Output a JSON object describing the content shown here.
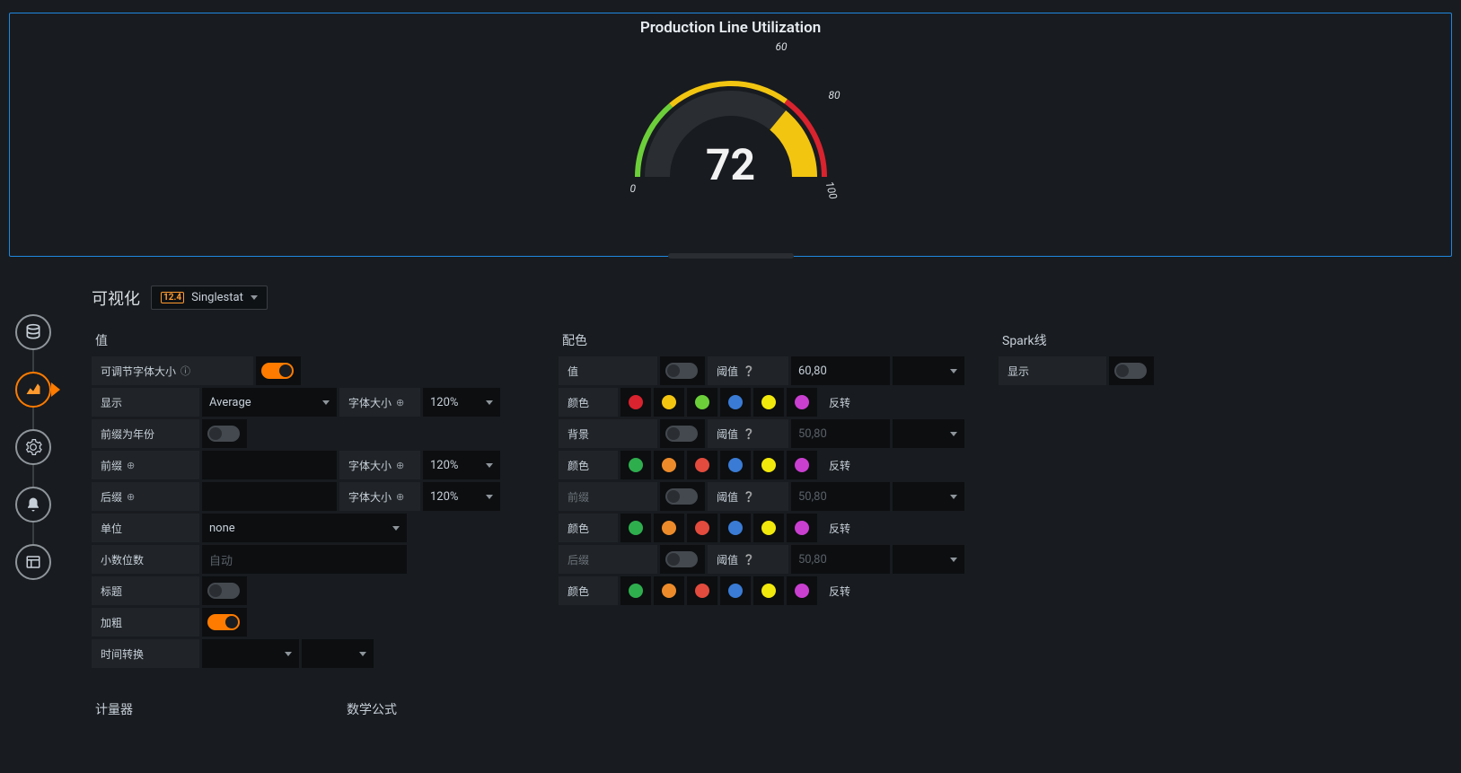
{
  "gauge": {
    "title": "Production Line Utilization",
    "value": 72,
    "ticks": {
      "min": "0",
      "t1": "60",
      "t2": "80",
      "t3": "100"
    },
    "zones": [
      {
        "from": 180,
        "to": 126,
        "color": "#d9232e"
      },
      {
        "from": 126,
        "to": 50,
        "color": "#f2c511"
      },
      {
        "from": 50,
        "to": 0,
        "color": "#6ccf3a"
      }
    ],
    "value_arc_color": "#f2c511",
    "track_color": "#2a2e33",
    "value_angle_deg": 50.4
  },
  "viz_header": {
    "label": "可视化",
    "num": "12.4",
    "name": "Singlestat"
  },
  "nav": [
    "database",
    "chart",
    "settings",
    "bell",
    "panel"
  ],
  "value_section": {
    "title": "值",
    "adjustable_font": "可调节字体大小",
    "show": "显示",
    "show_value": "Average",
    "font_size": "字体大小",
    "font_size_value": "120%",
    "prefix_year": "前缀为年份",
    "prefix": "前缀",
    "suffix": "后缀",
    "unit": "单位",
    "unit_value": "none",
    "decimals": "小数位数",
    "decimals_placeholder": "自动",
    "title_label": "标题",
    "bold": "加粗",
    "time_convert": "时间转换",
    "gauge_section": "计量器",
    "formula_section": "数学公式"
  },
  "color_section": {
    "title": "配色",
    "value": "值",
    "threshold": "阈值",
    "threshold_val_active": "60,80",
    "threshold_val_disabled": "50,80",
    "colors_label": "颜色",
    "reverse": "反转",
    "background": "背景",
    "prefix_label": "前缀",
    "suffix_label": "后缀",
    "palette_value": [
      "#d9232e",
      "#f2c511",
      "#6ccf3a",
      "#3a7bd5",
      "#f2e90c",
      "#c93fcf"
    ],
    "palette_std": [
      "#2fae4e",
      "#ed8b2b",
      "#e24b3d",
      "#3a7bd5",
      "#f2e90c",
      "#c93fcf"
    ]
  },
  "spark": {
    "title": "Spark线",
    "show": "显示"
  }
}
